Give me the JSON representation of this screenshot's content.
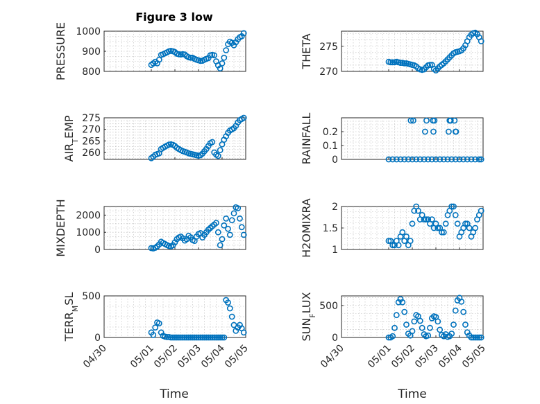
{
  "figure": {
    "title": "Figure 3 low",
    "xlabel_left": "Time",
    "xlabel_right": "Time"
  },
  "colors": {
    "marker": "#0072bd",
    "axis": "#262626",
    "grid": "#b8b8b8"
  },
  "chart_data": [
    {
      "type": "scatter",
      "ylabel": "PRESSURE",
      "ylabel_sub": "",
      "ylabel_tail": "",
      "xlim": [
        "04/30",
        "05/05"
      ],
      "ylim": [
        800,
        1000
      ],
      "yticks": [
        800,
        900,
        1000
      ],
      "ytick_labels": [
        "800",
        "900",
        "1000"
      ],
      "xticks": [
        "04/30",
        "05/01",
        "05/02",
        "05/03",
        "05/04",
        "05/05"
      ],
      "show_xticklabels": false,
      "grid": "on",
      "marker": "circle",
      "x": [
        "05/01 00:00",
        "05/01 02:00",
        "05/01 04:00",
        "05/01 06:00",
        "05/01 08:00",
        "05/01 10:00",
        "05/01 12:00",
        "05/01 14:00",
        "05/01 16:00",
        "05/01 18:00",
        "05/01 20:00",
        "05/01 22:00",
        "05/02 00:00",
        "05/02 02:00",
        "05/02 04:00",
        "05/02 06:00",
        "05/02 08:00",
        "05/02 10:00",
        "05/02 12:00",
        "05/02 14:00",
        "05/02 16:00",
        "05/02 18:00",
        "05/02 20:00",
        "05/02 22:00",
        "05/03 00:00",
        "05/03 02:00",
        "05/03 04:00",
        "05/03 06:00",
        "05/03 08:00",
        "05/03 10:00",
        "05/03 12:00",
        "05/03 14:00",
        "05/03 16:00",
        "05/03 18:00",
        "05/03 20:00",
        "05/03 22:00",
        "05/04 00:00",
        "05/04 02:00",
        "05/04 04:00",
        "05/04 06:00",
        "05/04 08:00",
        "05/04 10:00",
        "05/04 12:00",
        "05/04 14:00",
        "05/04 16:00",
        "05/04 18:00",
        "05/04 20:00",
        "05/04 22:00"
      ],
      "y": [
        832,
        840,
        848,
        840,
        858,
        882,
        885,
        890,
        895,
        900,
        902,
        900,
        896,
        888,
        885,
        884,
        886,
        884,
        876,
        870,
        868,
        868,
        862,
        858,
        855,
        852,
        853,
        858,
        862,
        866,
        880,
        882,
        880,
        850,
        830,
        815,
        840,
        868,
        905,
        935,
        948,
        942,
        930,
        945,
        960,
        970,
        975,
        990
      ]
    },
    {
      "type": "scatter",
      "ylabel": "THETA",
      "ylabel_sub": "",
      "ylabel_tail": "",
      "xlim": [
        "04/30",
        "05/05"
      ],
      "ylim": [
        270,
        278
      ],
      "yticks": [
        270,
        275
      ],
      "ytick_labels": [
        "270",
        "275"
      ],
      "xticks": [
        "04/30",
        "05/01",
        "05/02",
        "05/03",
        "05/04",
        "05/05"
      ],
      "show_xticklabels": false,
      "grid": "on",
      "marker": "circle",
      "x": [
        "05/01 00:00",
        "05/01 02:00",
        "05/01 04:00",
        "05/01 06:00",
        "05/01 08:00",
        "05/01 10:00",
        "05/01 12:00",
        "05/01 14:00",
        "05/01 16:00",
        "05/01 18:00",
        "05/01 20:00",
        "05/01 22:00",
        "05/02 00:00",
        "05/02 02:00",
        "05/02 04:00",
        "05/02 06:00",
        "05/02 08:00",
        "05/02 10:00",
        "05/02 12:00",
        "05/02 14:00",
        "05/02 16:00",
        "05/02 18:00",
        "05/02 20:00",
        "05/02 22:00",
        "05/03 00:00",
        "05/03 02:00",
        "05/03 04:00",
        "05/03 06:00",
        "05/03 08:00",
        "05/03 10:00",
        "05/03 12:00",
        "05/03 14:00",
        "05/03 16:00",
        "05/03 18:00",
        "05/03 20:00",
        "05/03 22:00",
        "05/04 00:00",
        "05/04 02:00",
        "05/04 04:00",
        "05/04 06:00",
        "05/04 08:00",
        "05/04 10:00",
        "05/04 12:00",
        "05/04 14:00",
        "05/04 16:00",
        "05/04 18:00",
        "05/04 20:00",
        "05/04 22:00"
      ],
      "y": [
        271.9,
        271.8,
        271.8,
        271.8,
        271.9,
        271.8,
        271.7,
        271.7,
        271.6,
        271.6,
        271.5,
        271.4,
        271.3,
        271.2,
        271.0,
        270.6,
        270.4,
        270.3,
        270.4,
        270.8,
        271.2,
        271.3,
        271.3,
        270.5,
        270.2,
        270.6,
        271.0,
        271.3,
        271.6,
        272.0,
        272.4,
        272.8,
        273.2,
        273.6,
        273.8,
        273.9,
        274.0,
        274.2,
        274.6,
        275.2,
        276.0,
        276.8,
        277.3,
        277.6,
        277.7,
        277.4,
        276.8,
        276.0
      ]
    },
    {
      "type": "scatter",
      "ylabel": "AIR",
      "ylabel_sub": "T",
      "ylabel_tail": "EMP",
      "xlim": [
        "04/30",
        "05/05"
      ],
      "ylim": [
        257,
        275
      ],
      "yticks": [
        260,
        265,
        270,
        275
      ],
      "ytick_labels": [
        "260",
        "265",
        "270",
        "275"
      ],
      "xticks": [
        "04/30",
        "05/01",
        "05/02",
        "05/03",
        "05/04",
        "05/05"
      ],
      "show_xticklabels": false,
      "grid": "on",
      "marker": "circle",
      "x": [
        "05/01 00:00",
        "05/01 02:00",
        "05/01 04:00",
        "05/01 06:00",
        "05/01 08:00",
        "05/01 10:00",
        "05/01 12:00",
        "05/01 14:00",
        "05/01 16:00",
        "05/01 18:00",
        "05/01 20:00",
        "05/01 22:00",
        "05/02 00:00",
        "05/02 02:00",
        "05/02 04:00",
        "05/02 06:00",
        "05/02 08:00",
        "05/02 10:00",
        "05/02 12:00",
        "05/02 14:00",
        "05/02 16:00",
        "05/02 18:00",
        "05/02 20:00",
        "05/02 22:00",
        "05/03 00:00",
        "05/03 02:00",
        "05/03 04:00",
        "05/03 06:00",
        "05/03 08:00",
        "05/03 10:00",
        "05/03 12:00",
        "05/03 14:00",
        "05/03 16:00",
        "05/03 18:00",
        "05/03 20:00",
        "05/03 22:00",
        "05/04 00:00",
        "05/04 02:00",
        "05/04 04:00",
        "05/04 06:00",
        "05/04 08:00",
        "05/04 10:00",
        "05/04 12:00",
        "05/04 14:00",
        "05/04 16:00",
        "05/04 18:00",
        "05/04 20:00",
        "05/04 22:00"
      ],
      "y": [
        257.5,
        258.2,
        259.0,
        259.3,
        259.6,
        261.5,
        262.0,
        262.5,
        263.0,
        263.4,
        263.5,
        263.3,
        262.8,
        262.0,
        261.5,
        261.0,
        260.6,
        260.3,
        260.0,
        259.6,
        259.4,
        259.2,
        259.0,
        258.8,
        258.6,
        258.8,
        259.5,
        260.5,
        261.5,
        262.8,
        264.0,
        264.5,
        260.0,
        259.0,
        258.5,
        261.0,
        263.5,
        265.5,
        267.0,
        268.5,
        269.5,
        270.0,
        270.5,
        271.5,
        273.0,
        274.0,
        274.5,
        275.0
      ]
    },
    {
      "type": "scatter",
      "ylabel": "RAINFALL",
      "ylabel_sub": "",
      "ylabel_tail": "",
      "xlim": [
        "04/30",
        "05/05"
      ],
      "ylim": [
        0,
        0.3
      ],
      "yticks": [
        0,
        0.1,
        0.2
      ],
      "ytick_labels": [
        "0",
        "0.1",
        "0.2"
      ],
      "xticks": [
        "04/30",
        "05/01",
        "05/02",
        "05/03",
        "05/04",
        "05/05"
      ],
      "show_xticklabels": false,
      "grid": "on",
      "marker": "circle",
      "x": [
        "05/01 00:00",
        "05/01 04:00",
        "05/01 08:00",
        "05/01 12:00",
        "05/01 16:00",
        "05/01 20:00",
        "05/02 00:00",
        "05/02 04:00",
        "05/02 08:00",
        "05/02 12:00",
        "05/02 16:00",
        "05/02 20:00",
        "05/03 00:00",
        "05/03 04:00",
        "05/03 08:00",
        "05/03 12:00",
        "05/03 16:00",
        "05/03 20:00",
        "05/04 00:00",
        "05/04 04:00",
        "05/04 08:00",
        "05/04 12:00",
        "05/04 16:00",
        "05/04 20:00",
        "05/04 22:00",
        "05/01 22:30",
        "05/02 01:00",
        "05/02 13:00",
        "05/02 14:30",
        "05/02 21:00",
        "05/02 22:30",
        "05/02 21:30",
        "05/03 13:00",
        "05/03 14:30",
        "05/03 15:00",
        "05/03 19:00",
        "05/03 20:00",
        "05/03 20:30",
        "05/03 14:00"
      ],
      "y": [
        0,
        0,
        0,
        0,
        0,
        0,
        0,
        0,
        0,
        0,
        0,
        0,
        0,
        0,
        0,
        0,
        0,
        0,
        0,
        0,
        0,
        0,
        0,
        0,
        0,
        0.28,
        0.28,
        0.2,
        0.28,
        0.28,
        0.28,
        0.2,
        0.2,
        0.28,
        0.28,
        0.28,
        0.2,
        0.2,
        0.28
      ]
    },
    {
      "type": "scatter",
      "ylabel": "MIXDEPTH",
      "ylabel_sub": "",
      "ylabel_tail": "",
      "xlim": [
        "04/30",
        "05/05"
      ],
      "ylim": [
        0,
        2500
      ],
      "yticks": [
        0,
        1000,
        2000
      ],
      "ytick_labels": [
        "0",
        "1000",
        "2000"
      ],
      "xticks": [
        "04/30",
        "05/01",
        "05/02",
        "05/03",
        "05/04",
        "05/05"
      ],
      "show_xticklabels": false,
      "grid": "on",
      "marker": "circle",
      "x": [
        "05/01 00:00",
        "05/01 02:00",
        "05/01 04:00",
        "05/01 06:00",
        "05/01 08:00",
        "05/01 10:00",
        "05/01 12:00",
        "05/01 14:00",
        "05/01 16:00",
        "05/01 18:00",
        "05/01 20:00",
        "05/01 22:00",
        "05/02 00:00",
        "05/02 02:00",
        "05/02 04:00",
        "05/02 06:00",
        "05/02 08:00",
        "05/02 10:00",
        "05/02 12:00",
        "05/02 14:00",
        "05/02 16:00",
        "05/02 18:00",
        "05/02 20:00",
        "05/02 22:00",
        "05/03 00:00",
        "05/03 02:00",
        "05/03 04:00",
        "05/03 06:00",
        "05/03 08:00",
        "05/03 10:00",
        "05/03 12:00",
        "05/03 14:00",
        "05/03 16:00",
        "05/03 18:00",
        "05/03 20:00",
        "05/03 22:00",
        "05/04 00:00",
        "05/04 02:00",
        "05/04 04:00",
        "05/04 06:00",
        "05/04 08:00",
        "05/04 10:00",
        "05/04 12:00",
        "05/04 14:00",
        "05/04 16:00",
        "05/04 18:00",
        "05/04 20:00",
        "05/04 22:00"
      ],
      "y": [
        80,
        60,
        100,
        180,
        300,
        450,
        380,
        320,
        260,
        200,
        180,
        250,
        420,
        600,
        700,
        750,
        650,
        520,
        600,
        800,
        700,
        550,
        500,
        750,
        900,
        950,
        700,
        850,
        1000,
        1150,
        1250,
        1350,
        1450,
        1550,
        1000,
        250,
        600,
        1400,
        1800,
        1200,
        850,
        1700,
        2100,
        2450,
        2400,
        1800,
        1300,
        850
      ]
    },
    {
      "type": "scatter",
      "ylabel": "H2OMIXRA",
      "ylabel_sub": "",
      "ylabel_tail": "",
      "xlim": [
        "04/30",
        "05/05"
      ],
      "ylim": [
        1,
        2
      ],
      "yticks": [
        1,
        1.5,
        2
      ],
      "ytick_labels": [
        "1",
        "1.5",
        "2"
      ],
      "xticks": [
        "04/30",
        "05/01",
        "05/02",
        "05/03",
        "05/04",
        "05/05"
      ],
      "show_xticklabels": false,
      "grid": "on",
      "marker": "circle",
      "x": [
        "05/01 00:00",
        "05/01 02:00",
        "05/01 04:00",
        "05/01 06:00",
        "05/01 08:00",
        "05/01 10:00",
        "05/01 12:00",
        "05/01 14:00",
        "05/01 16:00",
        "05/01 18:00",
        "05/01 20:00",
        "05/01 22:00",
        "05/02 00:00",
        "05/02 02:00",
        "05/02 04:00",
        "05/02 06:00",
        "05/02 08:00",
        "05/02 10:00",
        "05/02 12:00",
        "05/02 14:00",
        "05/02 16:00",
        "05/02 18:00",
        "05/02 20:00",
        "05/02 22:00",
        "05/03 00:00",
        "05/03 02:00",
        "05/03 04:00",
        "05/03 06:00",
        "05/03 08:00",
        "05/03 10:00",
        "05/03 12:00",
        "05/03 14:00",
        "05/03 16:00",
        "05/03 18:00",
        "05/03 20:00",
        "05/03 22:00",
        "05/04 00:00",
        "05/04 02:00",
        "05/04 04:00",
        "05/04 06:00",
        "05/04 08:00",
        "05/04 10:00",
        "05/04 12:00",
        "05/04 14:00",
        "05/04 16:00",
        "05/04 18:00",
        "05/04 20:00",
        "05/04 22:00"
      ],
      "y": [
        1.2,
        1.2,
        1.1,
        1.1,
        1.2,
        1.1,
        1.3,
        1.4,
        1.2,
        1.3,
        1.1,
        1.2,
        1.6,
        1.9,
        2.0,
        1.9,
        1.7,
        1.8,
        1.7,
        1.7,
        1.7,
        1.6,
        1.7,
        1.5,
        1.6,
        1.5,
        1.5,
        1.4,
        1.4,
        1.6,
        1.8,
        1.9,
        2.0,
        2.0,
        1.8,
        1.6,
        1.3,
        1.4,
        1.5,
        1.6,
        1.6,
        1.5,
        1.3,
        1.4,
        1.5,
        1.7,
        1.8,
        1.9
      ]
    },
    {
      "type": "scatter",
      "ylabel": "TERR",
      "ylabel_sub": "M",
      "ylabel_tail": "SL",
      "xlim": [
        "04/30",
        "05/05"
      ],
      "ylim": [
        0,
        500
      ],
      "yticks": [
        0,
        500
      ],
      "ytick_labels": [
        "0",
        "500"
      ],
      "xticks": [
        "04/30",
        "05/01",
        "05/02",
        "05/03",
        "05/04",
        "05/05"
      ],
      "show_xticklabels": true,
      "xtick_labels": [
        "04/30",
        "05/01",
        "05/02",
        "05/03",
        "05/04",
        "05/05"
      ],
      "grid": "on",
      "marker": "circle",
      "x": [
        "05/01 00:00",
        "05/01 02:00",
        "05/01 04:00",
        "05/01 06:00",
        "05/01 08:00",
        "05/01 10:00",
        "05/01 12:00",
        "05/01 14:00",
        "05/01 16:00",
        "05/01 18:00",
        "05/01 20:00",
        "05/01 22:00",
        "05/02 00:00",
        "05/02 02:00",
        "05/02 04:00",
        "05/02 06:00",
        "05/02 08:00",
        "05/02 10:00",
        "05/02 12:00",
        "05/02 14:00",
        "05/02 16:00",
        "05/02 18:00",
        "05/02 20:00",
        "05/02 22:00",
        "05/03 00:00",
        "05/03 02:00",
        "05/03 04:00",
        "05/03 06:00",
        "05/03 08:00",
        "05/03 10:00",
        "05/03 12:00",
        "05/03 14:00",
        "05/03 16:00",
        "05/03 18:00",
        "05/03 20:00",
        "05/03 22:00",
        "05/04 00:00",
        "05/04 02:00",
        "05/04 04:00",
        "05/04 06:00",
        "05/04 08:00",
        "05/04 10:00",
        "05/04 12:00",
        "05/04 14:00",
        "05/04 16:00",
        "05/04 18:00",
        "05/04 20:00",
        "05/04 22:00"
      ],
      "y": [
        60,
        30,
        120,
        180,
        170,
        60,
        20,
        10,
        5,
        5,
        0,
        0,
        0,
        0,
        0,
        0,
        0,
        0,
        0,
        0,
        0,
        0,
        0,
        0,
        0,
        0,
        0,
        0,
        0,
        0,
        0,
        0,
        0,
        0,
        0,
        0,
        0,
        0,
        450,
        420,
        350,
        250,
        150,
        80,
        120,
        150,
        110,
        60
      ]
    },
    {
      "type": "scatter",
      "ylabel": "SUN",
      "ylabel_sub": "F",
      "ylabel_tail": "LUX",
      "xlim": [
        "04/30",
        "05/05"
      ],
      "ylim": [
        0,
        650
      ],
      "yticks": [
        0,
        500
      ],
      "ytick_labels": [
        "0",
        "500"
      ],
      "xticks": [
        "04/30",
        "05/01",
        "05/02",
        "05/03",
        "05/04",
        "05/05"
      ],
      "show_xticklabels": true,
      "xtick_labels": [
        "04/30",
        "05/01",
        "05/02",
        "05/03",
        "05/04",
        "05/05"
      ],
      "grid": "on",
      "marker": "circle",
      "x": [
        "05/01 00:00",
        "05/01 02:00",
        "05/01 04:00",
        "05/01 06:00",
        "05/01 08:00",
        "05/01 10:00",
        "05/01 12:00",
        "05/01 14:00",
        "05/01 16:00",
        "05/01 18:00",
        "05/01 20:00",
        "05/01 22:00",
        "05/02 00:00",
        "05/02 02:00",
        "05/02 04:00",
        "05/02 06:00",
        "05/02 08:00",
        "05/02 10:00",
        "05/02 12:00",
        "05/02 14:00",
        "05/02 16:00",
        "05/02 18:00",
        "05/02 20:00",
        "05/02 22:00",
        "05/03 00:00",
        "05/03 02:00",
        "05/03 04:00",
        "05/03 06:00",
        "05/03 08:00",
        "05/03 10:00",
        "05/03 12:00",
        "05/03 14:00",
        "05/03 16:00",
        "05/03 18:00",
        "05/03 20:00",
        "05/03 22:00",
        "05/04 00:00",
        "05/04 02:00",
        "05/04 04:00",
        "05/04 06:00",
        "05/04 08:00",
        "05/04 10:00",
        "05/04 12:00",
        "05/04 14:00",
        "05/04 16:00",
        "05/04 18:00",
        "05/04 20:00",
        "05/04 22:00"
      ],
      "y": [
        0,
        0,
        20,
        150,
        350,
        550,
        600,
        550,
        400,
        200,
        60,
        30,
        100,
        250,
        350,
        330,
        260,
        150,
        50,
        20,
        30,
        150,
        300,
        330,
        320,
        250,
        120,
        40,
        20,
        50,
        10,
        20,
        60,
        200,
        420,
        580,
        620,
        560,
        400,
        200,
        80,
        30,
        0,
        0,
        0,
        0,
        0,
        0
      ]
    }
  ]
}
